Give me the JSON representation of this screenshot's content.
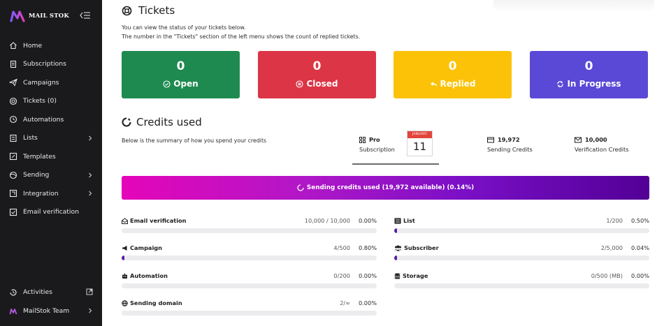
{
  "brand": {
    "name": "MAIL STOK"
  },
  "sidebar": {
    "items": [
      {
        "label": "Home",
        "icon": "home-icon",
        "chevron": false
      },
      {
        "label": "Subscriptions",
        "icon": "receipt-icon",
        "chevron": false
      },
      {
        "label": "Campaigns",
        "icon": "paper-plane-icon",
        "chevron": false
      },
      {
        "label": "Tickets (0)",
        "icon": "lifebuoy-icon",
        "chevron": false
      },
      {
        "label": "Automations",
        "icon": "clock-icon",
        "chevron": false
      },
      {
        "label": "Lists",
        "icon": "list-icon",
        "chevron": true
      },
      {
        "label": "Templates",
        "icon": "template-icon",
        "chevron": false
      },
      {
        "label": "Sending",
        "icon": "globe-icon",
        "chevron": true
      },
      {
        "label": "Integration",
        "icon": "plug-icon",
        "chevron": true
      },
      {
        "label": "Email verification",
        "icon": "email-check-icon",
        "chevron": false
      }
    ],
    "bottom": [
      {
        "label": "Activities",
        "icon": "history-icon"
      },
      {
        "label": "MailStok Team",
        "icon": "team-logo-icon"
      }
    ]
  },
  "tickets": {
    "title": "Tickets",
    "desc1": "You can view the status of your tickets below.",
    "desc2": "The number in the \"Tickets\" section of the left menu shows the count of replied tickets.",
    "cards": [
      {
        "count": "0",
        "label": "Open",
        "color": "#1e8a50"
      },
      {
        "count": "0",
        "label": "Closed",
        "color": "#dc3546"
      },
      {
        "count": "0",
        "label": "Replied",
        "color": "#fbc208"
      },
      {
        "count": "0",
        "label": "In Progress",
        "color": "#5a48d6"
      }
    ]
  },
  "credits": {
    "title": "Credits used",
    "desc": "Below is the summary of how you spend your credits",
    "plan": {
      "value": "Pro",
      "label": "Subscription"
    },
    "calendar": {
      "month": "JANUARY",
      "day": "11"
    },
    "sending": {
      "value": "19,972",
      "label": "Sending Credits"
    },
    "verification": {
      "value": "10,000",
      "label": "Verification Credits"
    },
    "banner": "Sending credits used (19,972 available) (0.14%)"
  },
  "usage": {
    "left": [
      {
        "name": "Email verification",
        "icon": "envelope-open-icon",
        "count": "10,000 / 10,000",
        "pct": "0.00%",
        "level": 0.0
      },
      {
        "name": "Campaign",
        "icon": "megaphone-icon",
        "count": "4/500",
        "pct": "0.80%",
        "level": 0.008
      },
      {
        "name": "Automation",
        "icon": "robot-icon",
        "count": "0/200",
        "pct": "0.00%",
        "level": 0.0
      },
      {
        "name": "Sending domain",
        "icon": "globe-icon",
        "count": "2/∞",
        "pct": "0.00%",
        "level": 0.0
      }
    ],
    "right": [
      {
        "name": "List",
        "icon": "list-alt-icon",
        "count": "1/200",
        "pct": "0.50%",
        "level": 0.005
      },
      {
        "name": "Subscriber",
        "icon": "users-icon",
        "count": "2/5,000",
        "pct": "0.04%",
        "level": 0.0004
      },
      {
        "name": "Storage",
        "icon": "database-icon",
        "count": "0/500 (MB)",
        "pct": "0.00%",
        "level": 0.0
      }
    ]
  },
  "colors": {
    "sidebar_bg": "#1a1a1c",
    "progress_fill": "#5a1ea6",
    "banner_start": "#e505b9",
    "banner_end": "#520096"
  }
}
